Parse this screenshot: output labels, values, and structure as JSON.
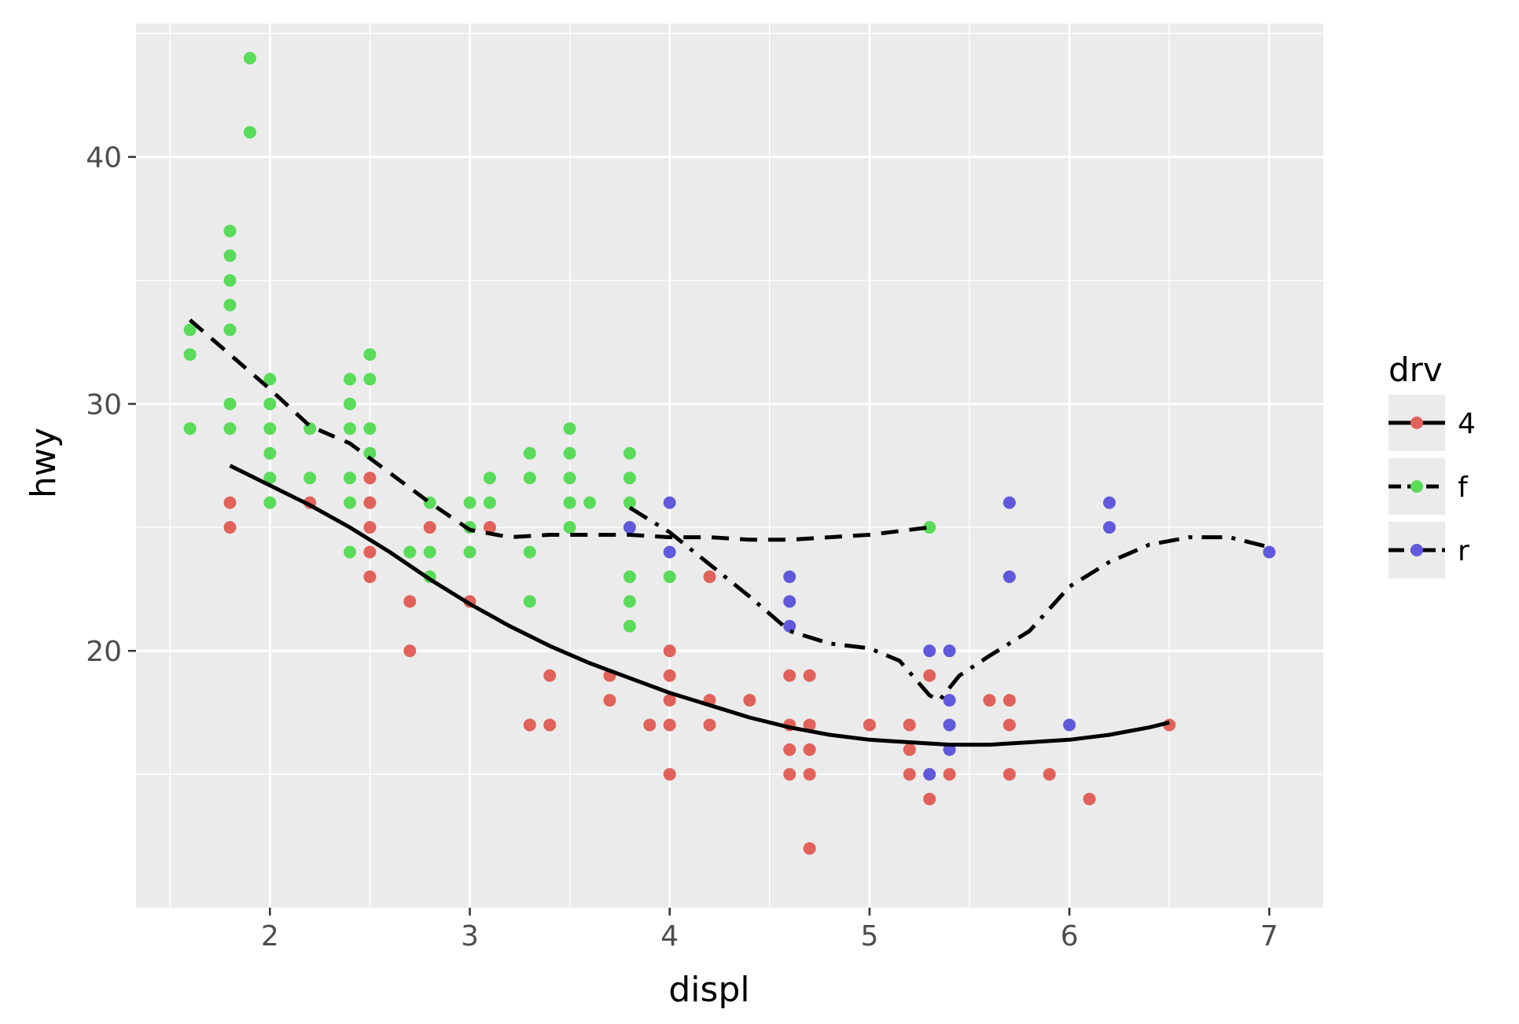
{
  "chart_data": {
    "type": "scatter",
    "title": "",
    "xlabel": "displ",
    "ylabel": "hwy",
    "xlim": [
      1.33,
      7.27
    ],
    "ylim": [
      9.6,
      45.4
    ],
    "x_ticks": [
      2,
      3,
      4,
      5,
      6,
      7
    ],
    "y_ticks": [
      20,
      30,
      40
    ],
    "grid": true,
    "panel_background": "#EBEBEB",
    "grid_color": "#FFFFFF",
    "legend": {
      "title": "drv",
      "placement": "right",
      "entries": [
        {
          "label": "4",
          "color": "#E0625A",
          "linetype": "solid"
        },
        {
          "label": "f",
          "color": "#5ADB5A",
          "linetype": "dashed"
        },
        {
          "label": "r",
          "color": "#6159DB",
          "linetype": "dashdot"
        }
      ]
    },
    "series": [
      {
        "name": "4",
        "color": "#E0625A",
        "points": [
          [
            1.8,
            26
          ],
          [
            1.8,
            25
          ],
          [
            2.2,
            26
          ],
          [
            2.5,
            27
          ],
          [
            2.5,
            26
          ],
          [
            2.5,
            25
          ],
          [
            2.5,
            24
          ],
          [
            2.5,
            23
          ],
          [
            2.7,
            22
          ],
          [
            2.7,
            20
          ],
          [
            2.8,
            25
          ],
          [
            3.0,
            22
          ],
          [
            3.1,
            25
          ],
          [
            3.3,
            17
          ],
          [
            3.4,
            19
          ],
          [
            3.4,
            17
          ],
          [
            3.7,
            19
          ],
          [
            3.7,
            18
          ],
          [
            3.9,
            17
          ],
          [
            4.0,
            20
          ],
          [
            4.0,
            19
          ],
          [
            4.0,
            18
          ],
          [
            4.0,
            17
          ],
          [
            4.0,
            15
          ],
          [
            4.2,
            23
          ],
          [
            4.2,
            18
          ],
          [
            4.2,
            17
          ],
          [
            4.4,
            18
          ],
          [
            4.6,
            19
          ],
          [
            4.6,
            17
          ],
          [
            4.6,
            16
          ],
          [
            4.6,
            15
          ],
          [
            4.7,
            19
          ],
          [
            4.7,
            17
          ],
          [
            4.7,
            16
          ],
          [
            4.7,
            15
          ],
          [
            4.7,
            12
          ],
          [
            5.0,
            17
          ],
          [
            5.2,
            17
          ],
          [
            5.2,
            16
          ],
          [
            5.2,
            15
          ],
          [
            5.3,
            19
          ],
          [
            5.3,
            14
          ],
          [
            5.4,
            15
          ],
          [
            5.6,
            18
          ],
          [
            5.7,
            18
          ],
          [
            5.7,
            17
          ],
          [
            5.7,
            15
          ],
          [
            5.9,
            15
          ],
          [
            6.1,
            14
          ],
          [
            6.5,
            17
          ]
        ],
        "smooth": [
          [
            1.8,
            27.5
          ],
          [
            2.0,
            26.7
          ],
          [
            2.2,
            25.9
          ],
          [
            2.4,
            25.0
          ],
          [
            2.6,
            24.0
          ],
          [
            2.8,
            22.9
          ],
          [
            3.0,
            21.9
          ],
          [
            3.2,
            21.0
          ],
          [
            3.4,
            20.2
          ],
          [
            3.6,
            19.5
          ],
          [
            3.8,
            18.9
          ],
          [
            4.0,
            18.3
          ],
          [
            4.2,
            17.8
          ],
          [
            4.4,
            17.3
          ],
          [
            4.6,
            16.9
          ],
          [
            4.8,
            16.6
          ],
          [
            5.0,
            16.4
          ],
          [
            5.2,
            16.3
          ],
          [
            5.4,
            16.2
          ],
          [
            5.6,
            16.2
          ],
          [
            5.8,
            16.3
          ],
          [
            6.0,
            16.4
          ],
          [
            6.2,
            16.6
          ],
          [
            6.4,
            16.9
          ],
          [
            6.5,
            17.1
          ]
        ]
      },
      {
        "name": "f",
        "color": "#5ADB5A",
        "points": [
          [
            1.6,
            33
          ],
          [
            1.6,
            32
          ],
          [
            1.6,
            29
          ],
          [
            1.8,
            37
          ],
          [
            1.8,
            36
          ],
          [
            1.8,
            35
          ],
          [
            1.8,
            34
          ],
          [
            1.8,
            33
          ],
          [
            1.8,
            30
          ],
          [
            1.8,
            29
          ],
          [
            1.9,
            44
          ],
          [
            1.9,
            41
          ],
          [
            2.0,
            31
          ],
          [
            2.0,
            30
          ],
          [
            2.0,
            29
          ],
          [
            2.0,
            28
          ],
          [
            2.0,
            27
          ],
          [
            2.0,
            26
          ],
          [
            2.2,
            29
          ],
          [
            2.2,
            27
          ],
          [
            2.4,
            31
          ],
          [
            2.4,
            30
          ],
          [
            2.4,
            29
          ],
          [
            2.4,
            27
          ],
          [
            2.4,
            26
          ],
          [
            2.4,
            24
          ],
          [
            2.5,
            32
          ],
          [
            2.5,
            31
          ],
          [
            2.5,
            29
          ],
          [
            2.5,
            28
          ],
          [
            2.7,
            24
          ],
          [
            2.8,
            26
          ],
          [
            2.8,
            24
          ],
          [
            2.8,
            23
          ],
          [
            3.0,
            26
          ],
          [
            3.0,
            25
          ],
          [
            3.0,
            24
          ],
          [
            3.1,
            27
          ],
          [
            3.1,
            26
          ],
          [
            3.3,
            28
          ],
          [
            3.3,
            27
          ],
          [
            3.3,
            24
          ],
          [
            3.3,
            22
          ],
          [
            3.5,
            29
          ],
          [
            3.5,
            28
          ],
          [
            3.5,
            27
          ],
          [
            3.5,
            26
          ],
          [
            3.5,
            25
          ],
          [
            3.6,
            26
          ],
          [
            3.8,
            28
          ],
          [
            3.8,
            27
          ],
          [
            3.8,
            26
          ],
          [
            3.8,
            23
          ],
          [
            3.8,
            22
          ],
          [
            3.8,
            21
          ],
          [
            4.0,
            23
          ],
          [
            5.3,
            25
          ]
        ],
        "smooth": [
          [
            1.6,
            33.4
          ],
          [
            1.8,
            32.0
          ],
          [
            2.0,
            30.6
          ],
          [
            2.2,
            29.1
          ],
          [
            2.4,
            28.4
          ],
          [
            2.6,
            27.2
          ],
          [
            2.8,
            26.0
          ],
          [
            3.0,
            24.9
          ],
          [
            3.2,
            24.6
          ],
          [
            3.4,
            24.7
          ],
          [
            3.6,
            24.7
          ],
          [
            3.8,
            24.7
          ],
          [
            4.0,
            24.6
          ],
          [
            4.2,
            24.6
          ],
          [
            4.4,
            24.5
          ],
          [
            4.6,
            24.5
          ],
          [
            4.8,
            24.6
          ],
          [
            5.0,
            24.7
          ],
          [
            5.2,
            24.9
          ],
          [
            5.3,
            25.0
          ]
        ]
      },
      {
        "name": "r",
        "color": "#6159DB",
        "points": [
          [
            3.8,
            25
          ],
          [
            4.0,
            26
          ],
          [
            4.0,
            24
          ],
          [
            4.6,
            23
          ],
          [
            4.6,
            22
          ],
          [
            4.6,
            21
          ],
          [
            5.3,
            20
          ],
          [
            5.3,
            15
          ],
          [
            5.4,
            20
          ],
          [
            5.4,
            18
          ],
          [
            5.4,
            17
          ],
          [
            5.4,
            16
          ],
          [
            5.7,
            26
          ],
          [
            5.7,
            23
          ],
          [
            6.0,
            17
          ],
          [
            6.2,
            26
          ],
          [
            6.2,
            25
          ],
          [
            7.0,
            24
          ]
        ],
        "smooth": [
          [
            3.8,
            25.8
          ],
          [
            4.0,
            24.8
          ],
          [
            4.2,
            23.5
          ],
          [
            4.4,
            22.2
          ],
          [
            4.6,
            20.8
          ],
          [
            4.8,
            20.3
          ],
          [
            5.0,
            20.1
          ],
          [
            5.15,
            19.6
          ],
          [
            5.3,
            18.2
          ],
          [
            5.35,
            18.0
          ],
          [
            5.45,
            19.0
          ],
          [
            5.6,
            19.8
          ],
          [
            5.8,
            20.8
          ],
          [
            6.0,
            22.6
          ],
          [
            6.2,
            23.6
          ],
          [
            6.4,
            24.3
          ],
          [
            6.6,
            24.6
          ],
          [
            6.8,
            24.6
          ],
          [
            7.0,
            24.2
          ]
        ]
      }
    ]
  }
}
